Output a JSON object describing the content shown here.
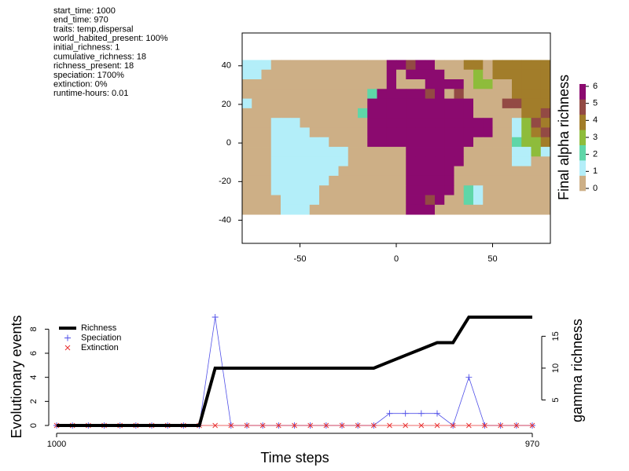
{
  "info": {
    "lines": [
      "start_time: 1000",
      "end_time: 970",
      "traits: temp,dispersal",
      "world_habited_present: 100%",
      "initial_richness: 1",
      "cumulative_richness: 18",
      "richness_present: 18",
      "speciation: 1700%",
      "extinction: 0%",
      "runtime-hours: 0.01"
    ]
  },
  "chart_data": [
    {
      "type": "raster",
      "xlim": [
        -80,
        80
      ],
      "ylim": [
        -52,
        57
      ],
      "xticks": [
        -50,
        0,
        50
      ],
      "yticks": [
        -40,
        -20,
        0,
        20,
        40
      ],
      "raster": {
        "xmin": -80,
        "ymax": 43,
        "cell": 5,
        "values": [
          [
            1,
            1,
            1,
            0,
            0,
            0,
            0,
            0,
            0,
            0,
            0,
            0,
            0,
            0,
            0,
            6,
            6,
            5,
            6,
            6,
            0,
            0,
            0,
            4,
            4,
            0,
            4,
            4,
            4,
            4,
            4,
            4
          ],
          [
            1,
            1,
            0,
            0,
            0,
            0,
            0,
            0,
            0,
            0,
            0,
            0,
            0,
            0,
            0,
            6,
            0,
            6,
            6,
            6,
            6,
            0,
            0,
            0,
            3,
            0,
            4,
            4,
            4,
            4,
            4,
            4
          ],
          [
            0,
            0,
            0,
            0,
            0,
            0,
            0,
            0,
            0,
            0,
            0,
            0,
            0,
            0,
            0,
            6,
            0,
            0,
            0,
            6,
            6,
            6,
            6,
            0,
            3,
            3,
            0,
            0,
            4,
            4,
            4,
            4
          ],
          [
            0,
            0,
            0,
            0,
            0,
            0,
            0,
            0,
            0,
            0,
            0,
            0,
            0,
            2,
            6,
            6,
            6,
            6,
            6,
            5,
            6,
            0,
            5,
            0,
            0,
            0,
            0,
            0,
            4,
            4,
            4,
            4
          ],
          [
            1,
            0,
            0,
            0,
            0,
            0,
            0,
            0,
            0,
            0,
            0,
            0,
            0,
            6,
            6,
            6,
            6,
            6,
            6,
            6,
            6,
            6,
            6,
            6,
            0,
            0,
            0,
            5,
            5,
            4,
            4,
            4
          ],
          [
            0,
            0,
            0,
            0,
            0,
            0,
            0,
            0,
            0,
            0,
            0,
            0,
            2,
            6,
            6,
            6,
            6,
            6,
            6,
            6,
            6,
            6,
            6,
            6,
            0,
            0,
            0,
            0,
            0,
            4,
            4,
            5
          ],
          [
            0,
            0,
            0,
            1,
            1,
            1,
            0,
            0,
            0,
            0,
            0,
            0,
            0,
            6,
            6,
            6,
            6,
            6,
            6,
            6,
            6,
            6,
            6,
            6,
            6,
            6,
            0,
            0,
            1,
            3,
            5,
            4
          ],
          [
            0,
            0,
            0,
            1,
            1,
            1,
            1,
            0,
            0,
            0,
            0,
            0,
            0,
            6,
            6,
            6,
            6,
            6,
            6,
            6,
            6,
            6,
            6,
            6,
            6,
            6,
            0,
            0,
            1,
            3,
            4,
            5
          ],
          [
            0,
            0,
            0,
            1,
            1,
            1,
            1,
            1,
            1,
            0,
            0,
            0,
            0,
            6,
            6,
            6,
            6,
            6,
            6,
            6,
            6,
            6,
            6,
            6,
            0,
            0,
            0,
            0,
            2,
            3,
            3,
            4
          ],
          [
            0,
            0,
            0,
            1,
            1,
            1,
            1,
            1,
            1,
            1,
            1,
            0,
            0,
            0,
            0,
            0,
            0,
            6,
            6,
            6,
            6,
            6,
            6,
            0,
            0,
            0,
            0,
            0,
            1,
            1,
            3,
            1
          ],
          [
            0,
            0,
            0,
            1,
            1,
            1,
            1,
            1,
            1,
            1,
            1,
            0,
            0,
            0,
            0,
            0,
            0,
            6,
            6,
            6,
            6,
            6,
            6,
            0,
            0,
            0,
            0,
            0,
            1,
            1,
            0,
            0
          ],
          [
            0,
            0,
            0,
            1,
            1,
            1,
            1,
            1,
            1,
            1,
            0,
            0,
            0,
            0,
            0,
            0,
            0,
            6,
            6,
            6,
            6,
            6,
            0,
            0,
            0,
            0,
            0,
            0,
            0,
            0,
            0,
            0
          ],
          [
            0,
            0,
            0,
            1,
            1,
            1,
            1,
            1,
            1,
            0,
            0,
            0,
            0,
            0,
            0,
            0,
            0,
            6,
            6,
            6,
            6,
            6,
            0,
            0,
            0,
            0,
            0,
            0,
            0,
            0,
            0,
            0
          ],
          [
            0,
            0,
            0,
            1,
            1,
            1,
            1,
            1,
            0,
            0,
            0,
            0,
            0,
            0,
            0,
            0,
            0,
            6,
            6,
            6,
            6,
            6,
            0,
            2,
            1,
            0,
            0,
            0,
            0,
            0,
            0,
            0
          ],
          [
            0,
            0,
            0,
            0,
            1,
            1,
            1,
            1,
            0,
            0,
            0,
            0,
            0,
            0,
            0,
            0,
            0,
            6,
            6,
            5,
            6,
            0,
            0,
            2,
            1,
            0,
            0,
            0,
            0,
            0,
            0,
            0
          ],
          [
            0,
            0,
            0,
            0,
            1,
            1,
            1,
            0,
            0,
            0,
            0,
            0,
            0,
            0,
            0,
            0,
            0,
            6,
            6,
            6,
            0,
            0,
            0,
            0,
            0,
            0,
            0,
            0,
            0,
            0,
            0,
            0
          ]
        ]
      },
      "colorbar": {
        "label": "Final alpha richness",
        "colors": [
          "#cdaf86",
          "#b3eef9",
          "#5fd6a8",
          "#8ebc3b",
          "#a27d2a",
          "#934a44",
          "#8b0a6f"
        ],
        "ticks": [
          0,
          1,
          2,
          3,
          4,
          5,
          6
        ]
      }
    },
    {
      "type": "line",
      "x": [
        1000,
        999,
        998,
        997,
        996,
        995,
        994,
        993,
        992,
        991,
        990,
        989,
        988,
        987,
        986,
        985,
        984,
        983,
        982,
        981,
        980,
        979,
        978,
        977,
        976,
        975,
        974,
        973,
        972,
        971,
        970
      ],
      "xlim": [
        1000,
        970
      ],
      "xticks": [
        1000,
        970
      ],
      "ylim": [
        0,
        9
      ],
      "yticks": [
        0,
        2,
        4,
        6,
        8
      ],
      "y2lim": [
        1,
        18
      ],
      "y2ticks": [
        5,
        10,
        15
      ],
      "xlabel": "Time steps",
      "ylabel": "Evolutionary events",
      "y2label": "gamma richness",
      "series": [
        {
          "name": "Richness",
          "color": "#000000",
          "axis": "y2",
          "values": [
            1,
            1,
            1,
            1,
            1,
            1,
            1,
            1,
            1,
            1,
            10,
            10,
            10,
            10,
            10,
            10,
            10,
            10,
            10,
            10,
            10,
            11,
            12,
            13,
            14,
            14,
            18,
            18,
            18,
            18,
            18
          ]
        },
        {
          "name": "Speciation",
          "color": "#4f4fe8",
          "marker": "+",
          "values": [
            0,
            0,
            0,
            0,
            0,
            0,
            0,
            0,
            0,
            0,
            9,
            0,
            0,
            0,
            0,
            0,
            0,
            0,
            0,
            0,
            0,
            1,
            1,
            1,
            1,
            0,
            4,
            0,
            0,
            0,
            0
          ]
        },
        {
          "name": "Extinction",
          "color": "#e83030",
          "marker": "x",
          "values": [
            0,
            0,
            0,
            0,
            0,
            0,
            0,
            0,
            0,
            0,
            0,
            0,
            0,
            0,
            0,
            0,
            0,
            0,
            0,
            0,
            0,
            0,
            0,
            0,
            0,
            0,
            0,
            0,
            0,
            0,
            0
          ]
        }
      ]
    }
  ]
}
